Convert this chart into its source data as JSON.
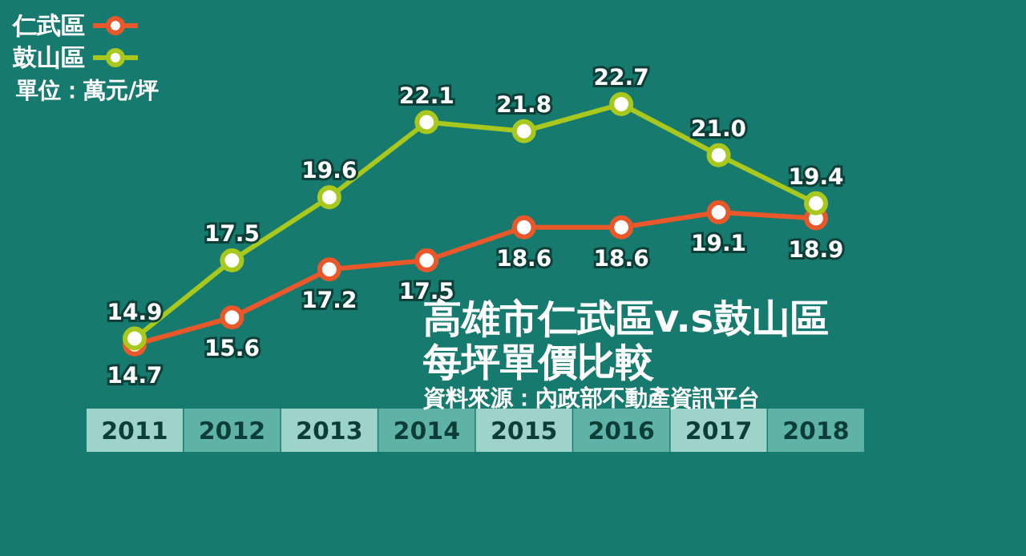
{
  "chart_data": {
    "type": "line",
    "title": "高雄市仁武區v.s鼓山區",
    "subtitle": "每坪單價比較",
    "annotations": [
      "單位：萬元/坪",
      "資料來源：內政部不動產資訊平台"
    ],
    "categories": [
      "2011",
      "2012",
      "2013",
      "2014",
      "2015",
      "2016",
      "2017",
      "2018"
    ],
    "series": [
      {
        "name": "仁武區",
        "color": "#e8582a",
        "values": [
          14.7,
          15.6,
          17.2,
          17.5,
          18.6,
          18.6,
          19.1,
          18.9
        ],
        "value_labels": [
          "14.7",
          "15.6",
          "17.2",
          "17.5",
          "18.6",
          "18.6",
          "19.1",
          "18.9"
        ]
      },
      {
        "name": "鼓山區",
        "color": "#a8c81e",
        "values": [
          14.9,
          17.5,
          19.6,
          22.1,
          21.8,
          22.7,
          21.0,
          19.4
        ],
        "value_labels": [
          "14.9",
          "17.5",
          "19.6",
          "22.1",
          "21.8",
          "22.7",
          "21.0",
          "19.4"
        ]
      }
    ],
    "legend": "top left",
    "marker": "circle",
    "line_style": "solid"
  }
}
